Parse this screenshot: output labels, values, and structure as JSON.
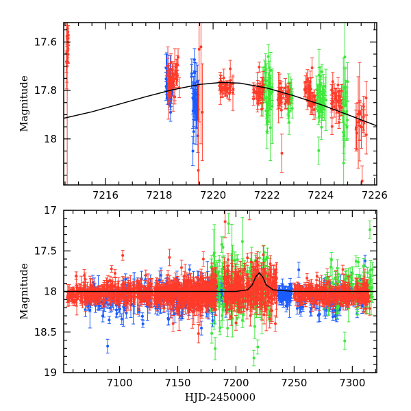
{
  "chart_data": [
    {
      "type": "scatter",
      "panel": "top",
      "title": "",
      "xlabel": "",
      "ylabel": "Magnitude",
      "xlim": [
        7214.45,
        7226.08
      ],
      "ylim": [
        18.19,
        17.52
      ],
      "y_inverted": true,
      "xticks": [
        7216,
        7218,
        7220,
        7222,
        7224,
        7226
      ],
      "xtick_labels": [
        "7216",
        "7218",
        "7220",
        "7222",
        "7224",
        "7226"
      ],
      "x_minor_step": 0.5,
      "yticks": [
        17.6,
        17.8,
        18.0
      ],
      "ytick_labels": [
        "17.6",
        "17.8",
        "18"
      ],
      "y_minor_step": 0.05,
      "grid": false,
      "model_curve": {
        "color": "#000000",
        "x": [
          7214.45,
          7215.5,
          7216.5,
          7217.5,
          7218.5,
          7219.5,
          7220.3,
          7221.0,
          7222.0,
          7223.0,
          7224.0,
          7225.0,
          7226.08
        ],
        "y": [
          17.915,
          17.888,
          17.857,
          17.826,
          17.797,
          17.775,
          17.767,
          17.77,
          17.79,
          17.822,
          17.858,
          17.9,
          17.946
        ]
      },
      "series": [
        {
          "name": "red",
          "color": "#ff3b2a",
          "clusters": [
            {
              "x_start": 7214.55,
              "x_end": 7214.62,
              "mean": 17.64,
              "scatter": 0.04,
              "err": 0.04,
              "n": 14
            },
            {
              "x_start": 7218.3,
              "x_end": 7218.75,
              "mean": 17.75,
              "scatter": 0.03,
              "err": 0.03,
              "n": 40
            },
            {
              "x_start": 7220.2,
              "x_end": 7220.75,
              "mean": 17.79,
              "scatter": 0.02,
              "err": 0.025,
              "n": 30
            },
            {
              "x_start": 7221.5,
              "x_end": 7221.9,
              "mean": 17.81,
              "scatter": 0.02,
              "err": 0.025,
              "n": 30
            },
            {
              "x_start": 7222.4,
              "x_end": 7222.85,
              "mean": 17.82,
              "scatter": 0.03,
              "err": 0.03,
              "n": 30
            },
            {
              "x_start": 7223.4,
              "x_end": 7223.8,
              "mean": 17.82,
              "scatter": 0.04,
              "err": 0.03,
              "n": 30
            },
            {
              "x_start": 7224.4,
              "x_end": 7224.8,
              "mean": 17.85,
              "scatter": 0.03,
              "err": 0.03,
              "n": 25
            },
            {
              "x_start": 7225.3,
              "x_end": 7225.7,
              "mean": 17.92,
              "scatter": 0.08,
              "err": 0.07,
              "n": 18
            }
          ],
          "outliers": [
            {
              "x": 7219.48,
              "y": 17.63,
              "err": 0.3
            },
            {
              "x": 7219.55,
              "y": 17.62,
              "err": 0.4
            },
            {
              "x": 7219.45,
              "y": 18.13,
              "err": 0.35
            },
            {
              "x": 7219.6,
              "y": 17.89,
              "err": 0.2
            },
            {
              "x": 7214.58,
              "y": 17.7,
              "err": 0.6
            }
          ]
        },
        {
          "name": "blue",
          "color": "#1b5cff",
          "clusters": [
            {
              "x_start": 7218.25,
              "x_end": 7218.5,
              "mean": 17.79,
              "scatter": 0.03,
              "err": 0.04,
              "n": 35
            },
            {
              "x_start": 7219.2,
              "x_end": 7219.45,
              "mean": 17.83,
              "scatter": 0.05,
              "err": 0.05,
              "n": 30
            }
          ],
          "outliers": [
            {
              "x": 7219.25,
              "y": 18.05,
              "err": 0.06
            },
            {
              "x": 7219.28,
              "y": 17.97,
              "err": 0.05
            }
          ]
        },
        {
          "name": "green",
          "color": "#3ce83a",
          "clusters": [
            {
              "x_start": 7221.85,
              "x_end": 7222.2,
              "mean": 17.81,
              "scatter": 0.06,
              "err": 0.05,
              "n": 30
            },
            {
              "x_start": 7222.75,
              "x_end": 7222.95,
              "mean": 17.83,
              "scatter": 0.03,
              "err": 0.035,
              "n": 20
            },
            {
              "x_start": 7223.8,
              "x_end": 7224.2,
              "mean": 17.84,
              "scatter": 0.04,
              "err": 0.04,
              "n": 35
            },
            {
              "x_start": 7224.8,
              "x_end": 7225.0,
              "mean": 17.85,
              "scatter": 0.07,
              "err": 0.08,
              "n": 16
            }
          ],
          "outliers": [
            {
              "x": 7222.05,
              "y": 17.66,
              "err": 0.05
            },
            {
              "x": 7222.0,
              "y": 17.97,
              "err": 0.07
            },
            {
              "x": 7224.85,
              "y": 18.1,
              "err": 0.1
            }
          ]
        }
      ]
    },
    {
      "type": "scatter",
      "panel": "bottom",
      "title": "",
      "xlabel": "HJD-2450000",
      "ylabel": "Magnitude",
      "xlim": [
        7052,
        7321
      ],
      "ylim": [
        19,
        17
      ],
      "y_inverted": true,
      "xticks": [
        7100,
        7150,
        7200,
        7250,
        7300
      ],
      "xtick_labels": [
        "7100",
        "7150",
        "7200",
        "7250",
        "7300"
      ],
      "x_minor_step": 10,
      "yticks": [
        17,
        17.5,
        18,
        18.5,
        19
      ],
      "ytick_labels": [
        "17",
        "17.5",
        "18",
        "18.5",
        "19"
      ],
      "y_minor_step": 0.1,
      "grid": false,
      "model_curve": {
        "color": "#000000",
        "x": [
          7052,
          7150,
          7200,
          7210,
          7214,
          7217,
          7220,
          7223,
          7226,
          7232,
          7250,
          7321
        ],
        "y": [
          18.0,
          18.0,
          18.0,
          17.98,
          17.92,
          17.82,
          17.77,
          17.82,
          17.92,
          17.98,
          18.0,
          18.0
        ]
      },
      "series": [
        {
          "name": "red",
          "color": "#ff3b2a",
          "clusters": [
            {
              "x_start": 7055,
              "x_end": 7062,
              "mean": 18.05,
              "scatter": 0.04,
              "err": 0.05,
              "n": 30
            },
            {
              "x_start": 7062,
              "x_end": 7128,
              "mean": 18.02,
              "scatter": 0.05,
              "err": 0.06,
              "n": 300
            },
            {
              "x_start": 7130,
              "x_end": 7150,
              "mean": 18.02,
              "scatter": 0.06,
              "err": 0.07,
              "n": 150
            },
            {
              "x_start": 7150,
              "x_end": 7183,
              "mean": 18.03,
              "scatter": 0.09,
              "err": 0.08,
              "n": 260
            },
            {
              "x_start": 7190,
              "x_end": 7235,
              "mean": 17.95,
              "scatter": 0.12,
              "err": 0.09,
              "n": 300
            },
            {
              "x_start": 7250,
              "x_end": 7315,
              "mean": 18.03,
              "scatter": 0.05,
              "err": 0.06,
              "n": 300
            }
          ]
        },
        {
          "name": "blue",
          "color": "#1b5cff",
          "clusters": [
            {
              "x_start": 7070,
              "x_end": 7128,
              "mean": 18.08,
              "scatter": 0.09,
              "err": 0.07,
              "n": 100
            },
            {
              "x_start": 7130,
              "x_end": 7182,
              "mean": 18.08,
              "scatter": 0.12,
              "err": 0.08,
              "n": 120
            },
            {
              "x_start": 7182,
              "x_end": 7192,
              "mean": 18.02,
              "scatter": 0.04,
              "err": 0.06,
              "n": 60
            },
            {
              "x_start": 7236,
              "x_end": 7248,
              "mean": 18.03,
              "scatter": 0.05,
              "err": 0.06,
              "n": 60
            },
            {
              "x_start": 7250,
              "x_end": 7313,
              "mean": 18.08,
              "scatter": 0.1,
              "err": 0.07,
              "n": 100
            }
          ]
        },
        {
          "name": "green",
          "color": "#3ce83a",
          "clusters": [
            {
              "x_start": 7178,
              "x_end": 7230,
              "mean": 17.92,
              "scatter": 0.2,
              "err": 0.1,
              "n": 160
            },
            {
              "x_start": 7275,
              "x_end": 7318,
              "mean": 17.97,
              "scatter": 0.17,
              "err": 0.08,
              "n": 90
            }
          ]
        }
      ]
    }
  ]
}
